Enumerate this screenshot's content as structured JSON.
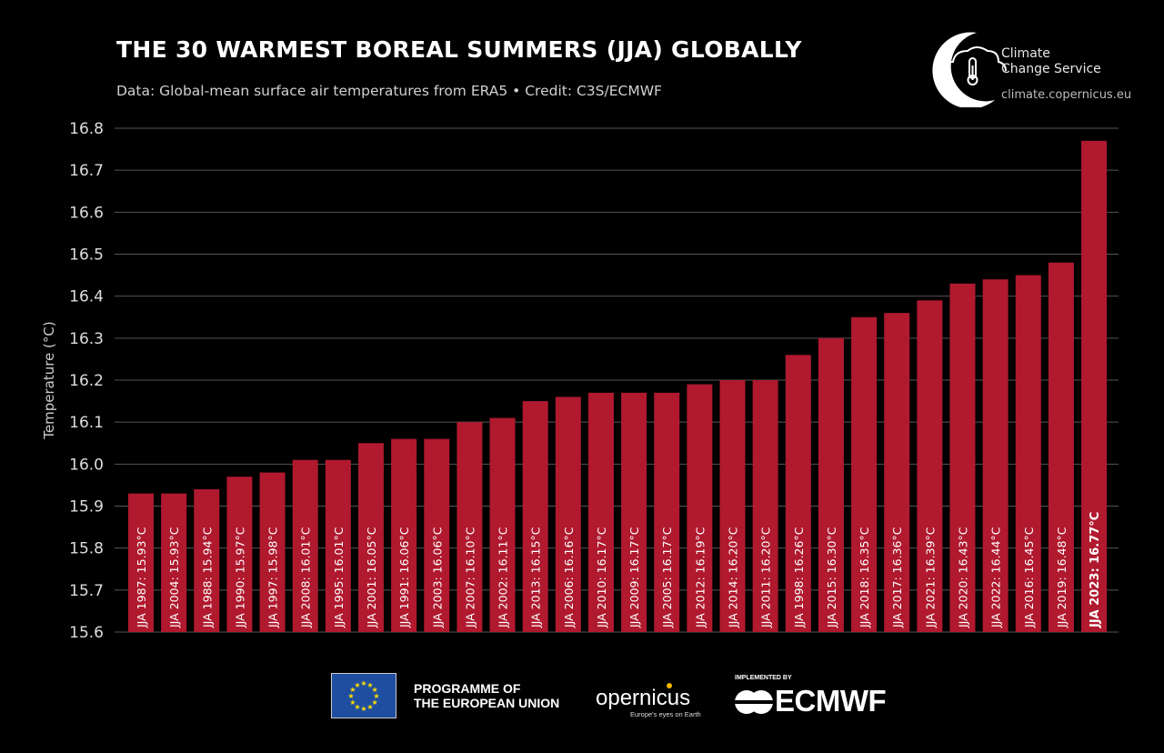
{
  "header": {
    "title": "THE 30 WARMEST BOREAL SUMMERS (JJA) GLOBALLY",
    "subtitle": "Data: Global-mean surface air temperatures from ERA5 • Credit: C3S/ECMWF"
  },
  "logo": {
    "name_line1": "Climate",
    "name_line2": "Change Service",
    "url": "climate.copernicus.eu"
  },
  "footer": {
    "eu_line1": "PROGRAMME OF",
    "eu_line2": "THE EUROPEAN UNION",
    "copernicus": "opernicus",
    "copernicus_tagline": "Europe's eyes on Earth",
    "implemented_by": "IMPLEMENTED BY",
    "ecmwf": "ECMWF"
  },
  "colors": {
    "bar": "#b0192e",
    "background": "#000000",
    "grid": "#555555"
  },
  "chart_data": {
    "type": "bar",
    "title": "THE 30 WARMEST BOREAL SUMMERS (JJA) GLOBALLY",
    "ylabel": "Temperature (°C)",
    "xlabel": "",
    "ylim": [
      15.6,
      16.8
    ],
    "yticks": [
      "15.6",
      "15.7",
      "15.8",
      "15.9",
      "16.0",
      "16.1",
      "16.2",
      "16.3",
      "16.4",
      "16.5",
      "16.6",
      "16.7",
      "16.8"
    ],
    "grid": true,
    "categories": [
      "1987",
      "2004",
      "1988",
      "1990",
      "1997",
      "2008",
      "1995",
      "2001",
      "1991",
      "2003",
      "2007",
      "2002",
      "2013",
      "2006",
      "2010",
      "2009",
      "2005",
      "2012",
      "2014",
      "2011",
      "1998",
      "2015",
      "2018",
      "2017",
      "2021",
      "2020",
      "2022",
      "2016",
      "2019",
      "2023"
    ],
    "values": [
      15.93,
      15.93,
      15.94,
      15.97,
      15.98,
      16.01,
      16.01,
      16.05,
      16.06,
      16.06,
      16.1,
      16.11,
      16.15,
      16.16,
      16.17,
      16.17,
      16.17,
      16.19,
      16.2,
      16.2,
      16.26,
      16.3,
      16.35,
      16.36,
      16.39,
      16.43,
      16.44,
      16.45,
      16.48,
      16.77
    ],
    "labels": [
      "JJA 1987: 15.93°C",
      "JJA 2004: 15.93°C",
      "JJA 1988: 15.94°C",
      "JJA 1990: 15.97°C",
      "JJA 1997: 15.98°C",
      "JJA 2008: 16.01°C",
      "JJA 1995: 16.01°C",
      "JJA 2001: 16.05°C",
      "JJA 1991: 16.06°C",
      "JJA 2003: 16.06°C",
      "JJA 2007: 16.10°C",
      "JJA 2002: 16.11°C",
      "JJA 2013: 16.15°C",
      "JJA 2006: 16.16°C",
      "JJA 2010: 16.17°C",
      "JJA 2009: 16.17°C",
      "JJA 2005: 16.17°C",
      "JJA 2012: 16.19°C",
      "JJA 2014: 16.20°C",
      "JJA 2011: 16.20°C",
      "JJA 1998: 16.26°C",
      "JJA 2015: 16.30°C",
      "JJA 2018: 16.35°C",
      "JJA 2017: 16.36°C",
      "JJA 2021: 16.39°C",
      "JJA 2020: 16.43°C",
      "JJA 2022: 16.44°C",
      "JJA 2016: 16.45°C",
      "JJA 2019: 16.48°C",
      "JJA 2023: 16.77°C"
    ],
    "highlight": "JJA 2023: 16.77°C"
  }
}
